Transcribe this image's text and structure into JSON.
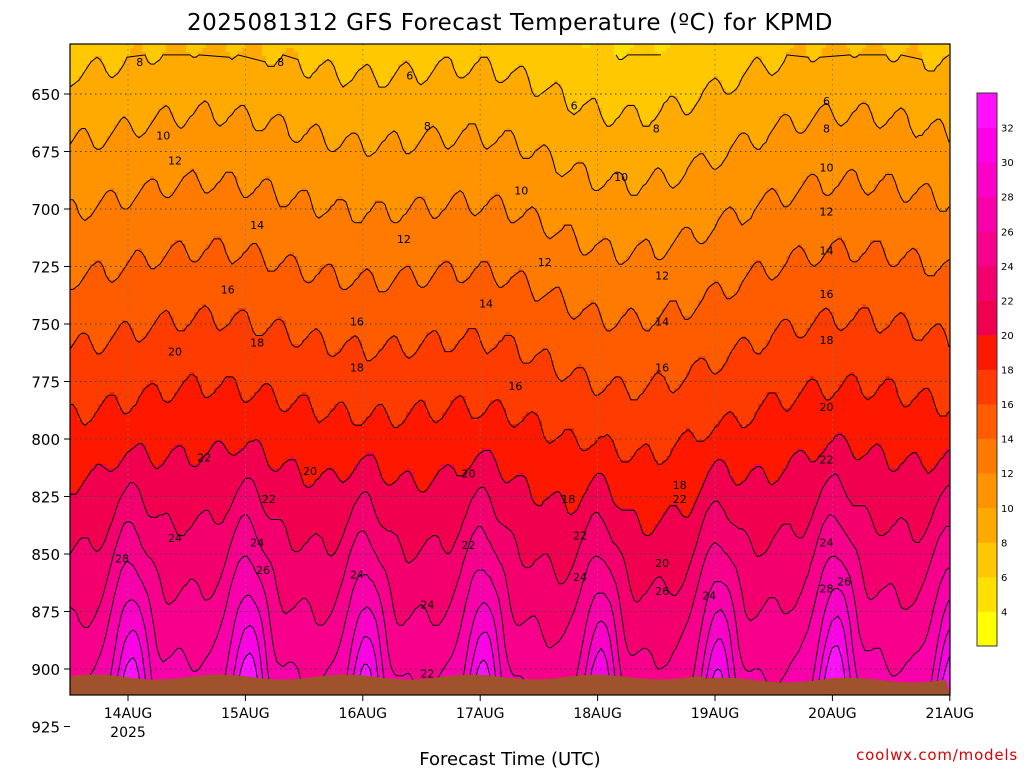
{
  "chart_data": {
    "type": "heatmap",
    "subtype": "filled-contour",
    "title": "2025081312 GFS Forecast Temperature (ºC) for KPMD",
    "xlabel": "Forecast Time (UTC)",
    "ylabel": "",
    "y_axis": {
      "ticks": [
        650,
        675,
        700,
        725,
        750,
        775,
        800,
        825,
        850,
        875,
        900,
        925
      ],
      "range": [
        630,
        935
      ],
      "inverted": true
    },
    "x_axis": {
      "ticks": [
        "14AUG",
        "15AUG",
        "16AUG",
        "17AUG",
        "18AUG",
        "19AUG",
        "20AUG",
        "21AUG"
      ],
      "year_label": "2025",
      "range_days": [
        -0.45,
        7.0
      ]
    },
    "grid": true,
    "colorbar": {
      "ticks": [
        4,
        6,
        8,
        10,
        12,
        14,
        16,
        18,
        20,
        22,
        24,
        26,
        28,
        30,
        32
      ],
      "levels": [
        2,
        4,
        6,
        8,
        10,
        12,
        14,
        16,
        18,
        20,
        22,
        24,
        26,
        28,
        30,
        32,
        34
      ],
      "colors": [
        "#ffff00",
        "#ffe000",
        "#ffc800",
        "#ffaa00",
        "#ff9400",
        "#ff7a00",
        "#ff5c00",
        "#ff3c00",
        "#ff1800",
        "#f20050",
        "#f4006e",
        "#f6008c",
        "#f800aa",
        "#fa00c8",
        "#fc00e6",
        "#ff10ff"
      ]
    },
    "surface_color": "#a0522d",
    "contour_labels": [
      {
        "value": "8",
        "x": 0.1,
        "y": 636
      },
      {
        "value": "8",
        "x": 1.3,
        "y": 636
      },
      {
        "value": "6",
        "x": 2.4,
        "y": 642
      },
      {
        "value": "6",
        "x": 3.8,
        "y": 655
      },
      {
        "value": "6",
        "x": 5.95,
        "y": 653
      },
      {
        "value": "8",
        "x": 2.55,
        "y": 664
      },
      {
        "value": "8",
        "x": 4.5,
        "y": 665
      },
      {
        "value": "8",
        "x": 5.95,
        "y": 665
      },
      {
        "value": "10",
        "x": 0.3,
        "y": 668
      },
      {
        "value": "12",
        "x": 0.4,
        "y": 679
      },
      {
        "value": "10",
        "x": 4.2,
        "y": 686
      },
      {
        "value": "10",
        "x": 3.35,
        "y": 692
      },
      {
        "value": "10",
        "x": 5.95,
        "y": 682
      },
      {
        "value": "12",
        "x": 5.95,
        "y": 701
      },
      {
        "value": "14",
        "x": 1.1,
        "y": 707
      },
      {
        "value": "12",
        "x": 2.35,
        "y": 713
      },
      {
        "value": "12",
        "x": 3.55,
        "y": 723
      },
      {
        "value": "14",
        "x": 5.95,
        "y": 718
      },
      {
        "value": "12",
        "x": 4.55,
        "y": 729
      },
      {
        "value": "16",
        "x": 0.85,
        "y": 735
      },
      {
        "value": "16",
        "x": 5.95,
        "y": 737
      },
      {
        "value": "14",
        "x": 3.05,
        "y": 741
      },
      {
        "value": "16",
        "x": 1.95,
        "y": 749
      },
      {
        "value": "14",
        "x": 4.55,
        "y": 749
      },
      {
        "value": "18",
        "x": 5.95,
        "y": 757
      },
      {
        "value": "18",
        "x": 1.1,
        "y": 758
      },
      {
        "value": "20",
        "x": 0.4,
        "y": 762
      },
      {
        "value": "18",
        "x": 1.95,
        "y": 769
      },
      {
        "value": "16",
        "x": 4.55,
        "y": 769
      },
      {
        "value": "16",
        "x": 3.3,
        "y": 777
      },
      {
        "value": "20",
        "x": 5.95,
        "y": 786
      },
      {
        "value": "22",
        "x": 0.65,
        "y": 808
      },
      {
        "value": "22",
        "x": 5.95,
        "y": 809
      },
      {
        "value": "20",
        "x": 1.55,
        "y": 814
      },
      {
        "value": "20",
        "x": 2.9,
        "y": 815
      },
      {
        "value": "18",
        "x": 4.7,
        "y": 820
      },
      {
        "value": "22",
        "x": 1.2,
        "y": 826
      },
      {
        "value": "18",
        "x": 3.75,
        "y": 826
      },
      {
        "value": "22",
        "x": 4.7,
        "y": 826
      },
      {
        "value": "24",
        "x": 0.4,
        "y": 843
      },
      {
        "value": "22",
        "x": 3.85,
        "y": 842
      },
      {
        "value": "24",
        "x": 1.1,
        "y": 845
      },
      {
        "value": "24",
        "x": 5.95,
        "y": 845
      },
      {
        "value": "22",
        "x": 2.9,
        "y": 846
      },
      {
        "value": "28",
        "x": -0.05,
        "y": 852
      },
      {
        "value": "20",
        "x": 4.55,
        "y": 854
      },
      {
        "value": "26",
        "x": 1.15,
        "y": 857
      },
      {
        "value": "24",
        "x": 1.95,
        "y": 859
      },
      {
        "value": "24",
        "x": 3.85,
        "y": 860
      },
      {
        "value": "26",
        "x": 6.1,
        "y": 862
      },
      {
        "value": "28",
        "x": 5.95,
        "y": 865
      },
      {
        "value": "26",
        "x": 4.55,
        "y": 866
      },
      {
        "value": "24",
        "x": 4.95,
        "y": 868
      },
      {
        "value": "24",
        "x": 2.55,
        "y": 872
      },
      {
        "value": "22",
        "x": 2.55,
        "y": 902
      }
    ]
  }
}
